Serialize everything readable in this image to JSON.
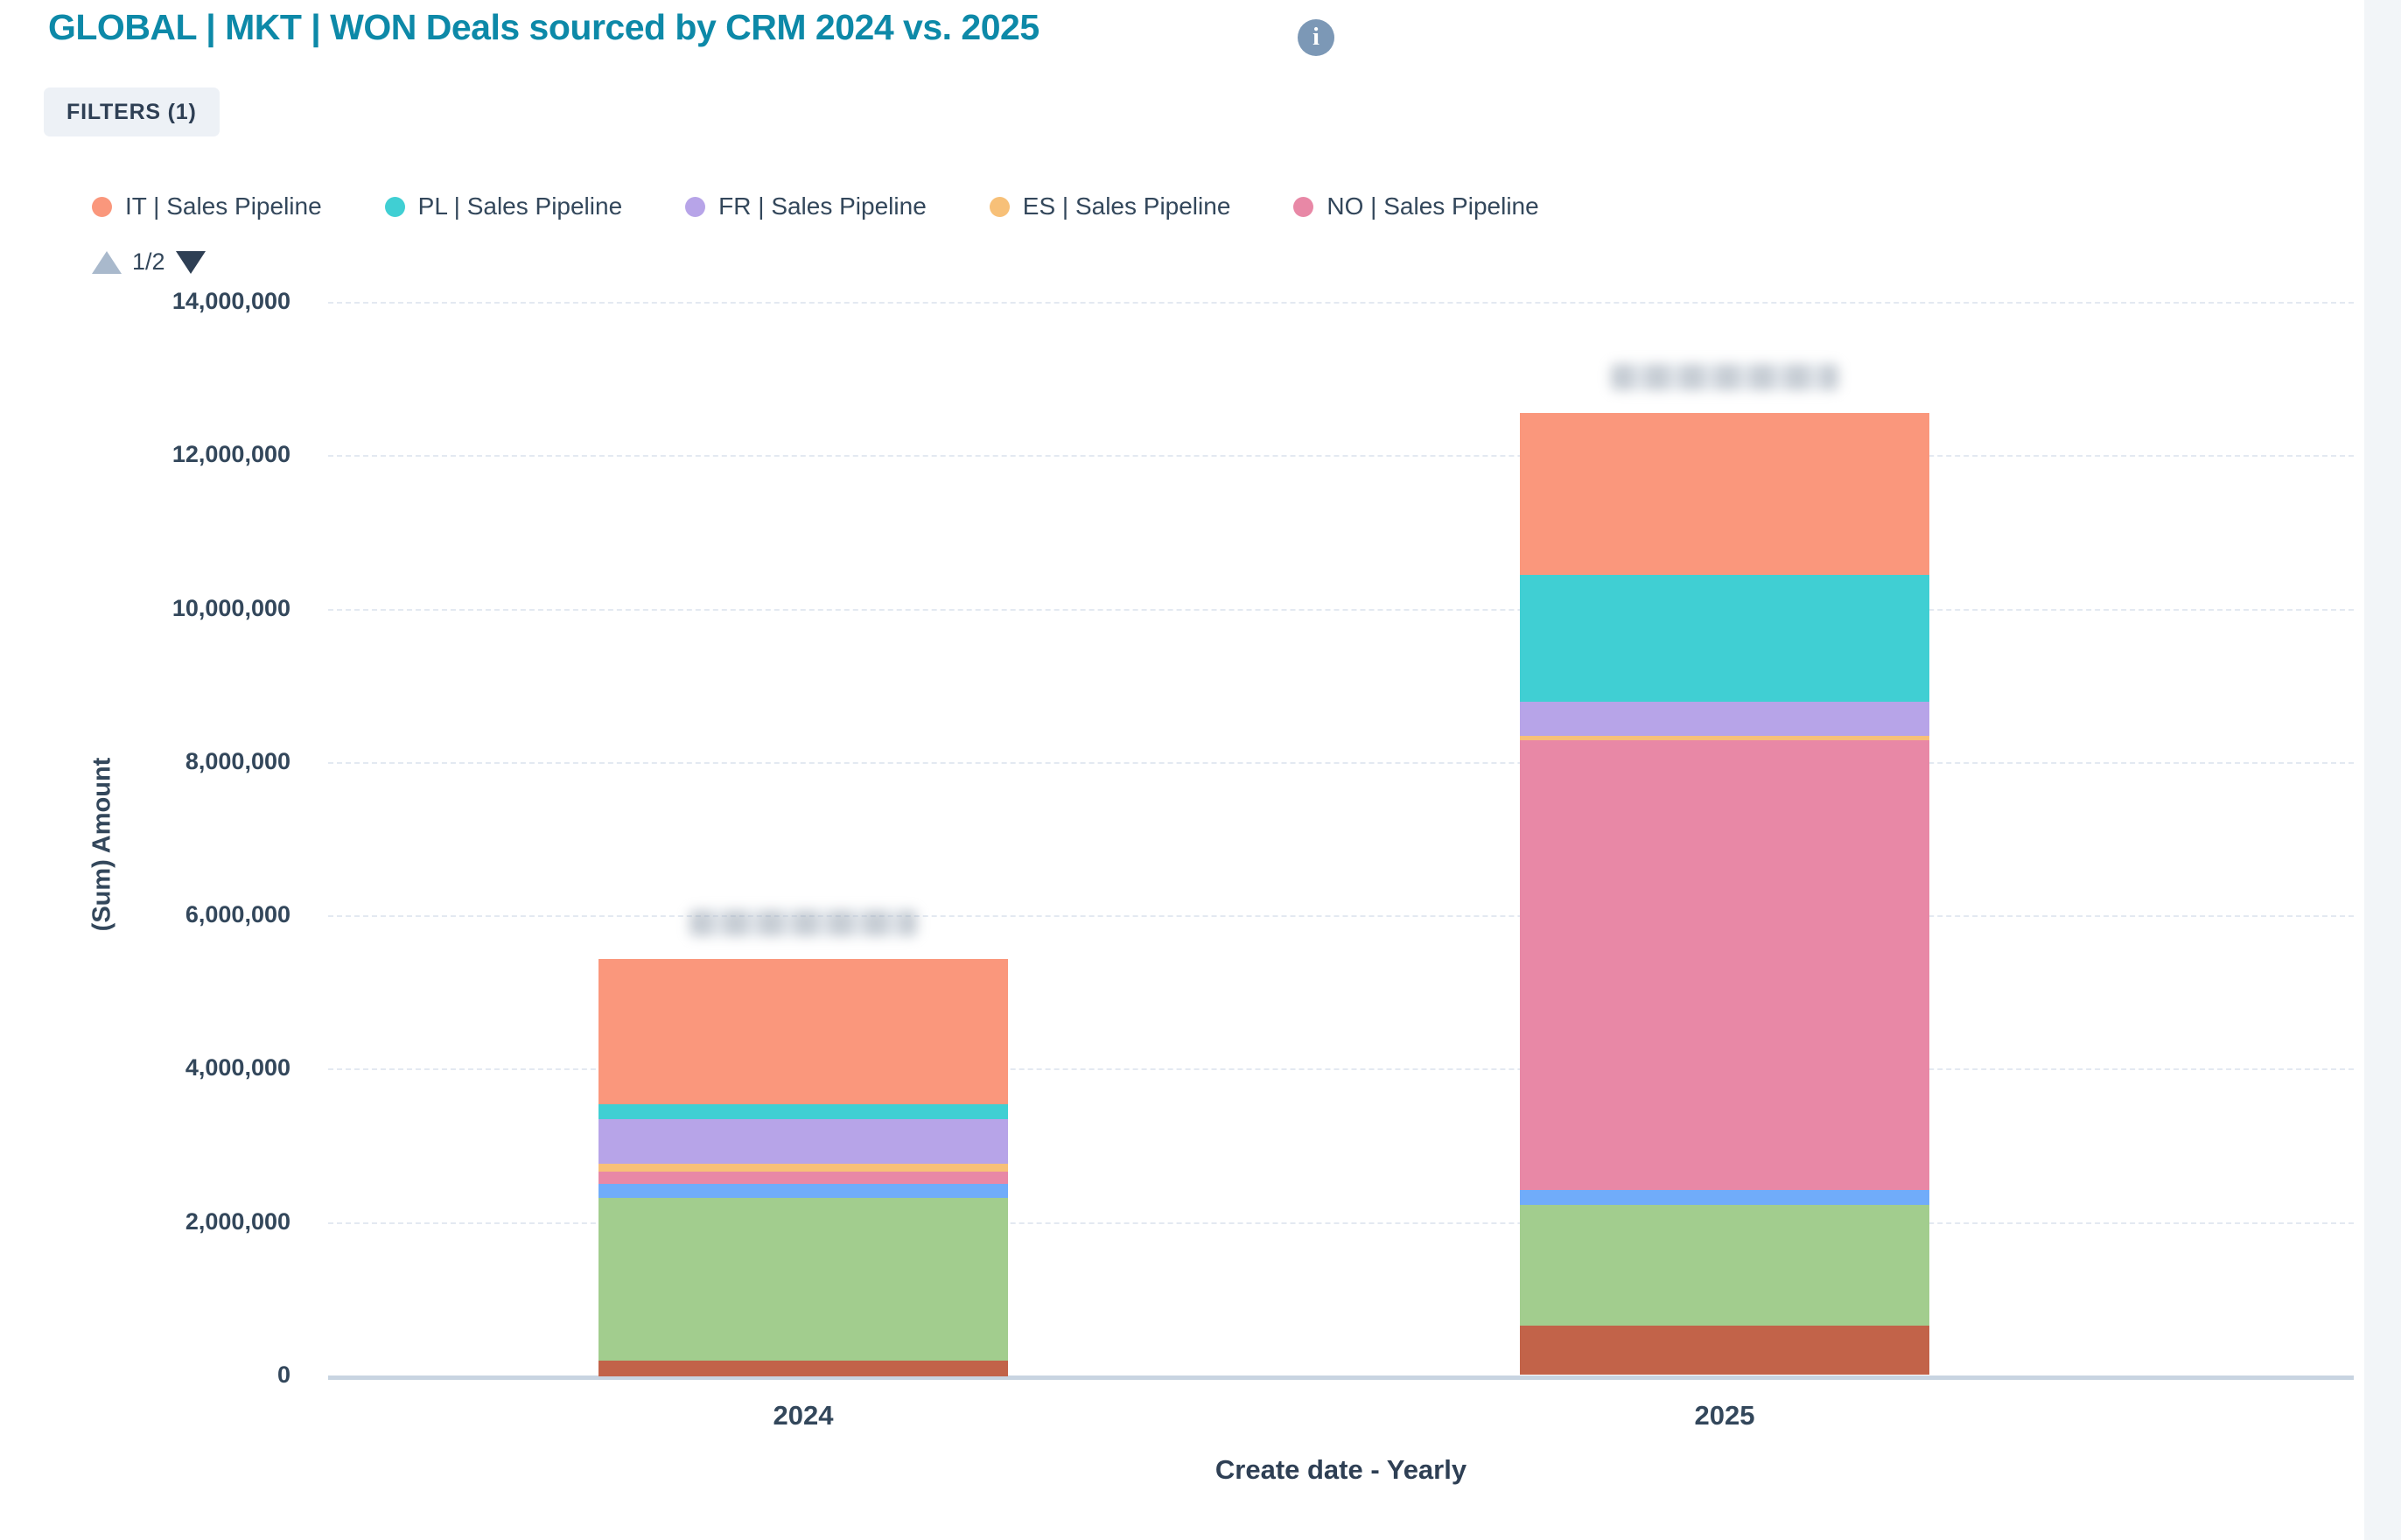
{
  "header": {
    "title": "GLOBAL | MKT | WON Deals sourced by CRM 2024 vs. 2025",
    "info_icon_glyph": "i",
    "filters_label": "FILTERS (1)"
  },
  "legend": {
    "page_indicator": "1/2",
    "visible_items": [
      {
        "label": "IT | Sales Pipeline",
        "color": "#fa977c"
      },
      {
        "label": "PL | Sales Pipeline",
        "color": "#40cfd3"
      },
      {
        "label": "FR | Sales Pipeline",
        "color": "#b7a4e8"
      },
      {
        "label": "ES | Sales Pipeline",
        "color": "#f7c078"
      },
      {
        "label": "NO | Sales Pipeline",
        "color": "#e888a6"
      }
    ]
  },
  "chart_data": {
    "type": "bar",
    "stacked": true,
    "categories": [
      "2024",
      "2025"
    ],
    "series": [
      {
        "name": "IT | Sales Pipeline",
        "color": "#fa977c",
        "legend_page": 1,
        "values": [
          1890000,
          2110000
        ]
      },
      {
        "name": "PL | Sales Pipeline",
        "color": "#40cfd3",
        "legend_page": 1,
        "values": [
          190000,
          1660000
        ]
      },
      {
        "name": "FR | Sales Pipeline",
        "color": "#b7a4e8",
        "legend_page": 1,
        "values": [
          580000,
          450000
        ]
      },
      {
        "name": "ES | Sales Pipeline",
        "color": "#f7c078",
        "legend_page": 1,
        "values": [
          100000,
          60000
        ]
      },
      {
        "name": "NO | Sales Pipeline",
        "color": "#e888a6",
        "legend_page": 1,
        "values": [
          160000,
          5860000
        ]
      },
      {
        "name": "",
        "color": "#70acfa",
        "legend_page": 2,
        "values": [
          180000,
          190000
        ]
      },
      {
        "name": "",
        "color": "#a2cd8e",
        "legend_page": 2,
        "values": [
          2120000,
          1580000
        ]
      },
      {
        "name": "",
        "color": "#c26349",
        "legend_page": 2,
        "values": [
          210000,
          640000
        ]
      }
    ],
    "stack_order": "first series on top, last series at bottom",
    "bar_totals_redacted": true,
    "ylabel": "(Sum) Amount",
    "xlabel": "Create date - Yearly",
    "ylim": [
      0,
      14000000
    ],
    "yticks": [
      0,
      2000000,
      4000000,
      6000000,
      8000000,
      10000000,
      12000000,
      14000000
    ],
    "ytick_labels": [
      "0",
      "2,000,000",
      "4,000,000",
      "6,000,000",
      "8,000,000",
      "10,000,000",
      "12,000,000",
      "14,000,000"
    ],
    "grid": "horizontal dashed",
    "legend_position": "top-left"
  },
  "colors": {
    "title": "#0d89a8",
    "text": "#33475b",
    "gridline": "#e3e9f1",
    "axis_baseline": "#c8d4e1",
    "chip_bg": "#edf1f6",
    "info_icon_bg": "#7c98b6",
    "pager_up_disabled": "#a9b9cc",
    "pager_down_active": "#2e3f54"
  }
}
